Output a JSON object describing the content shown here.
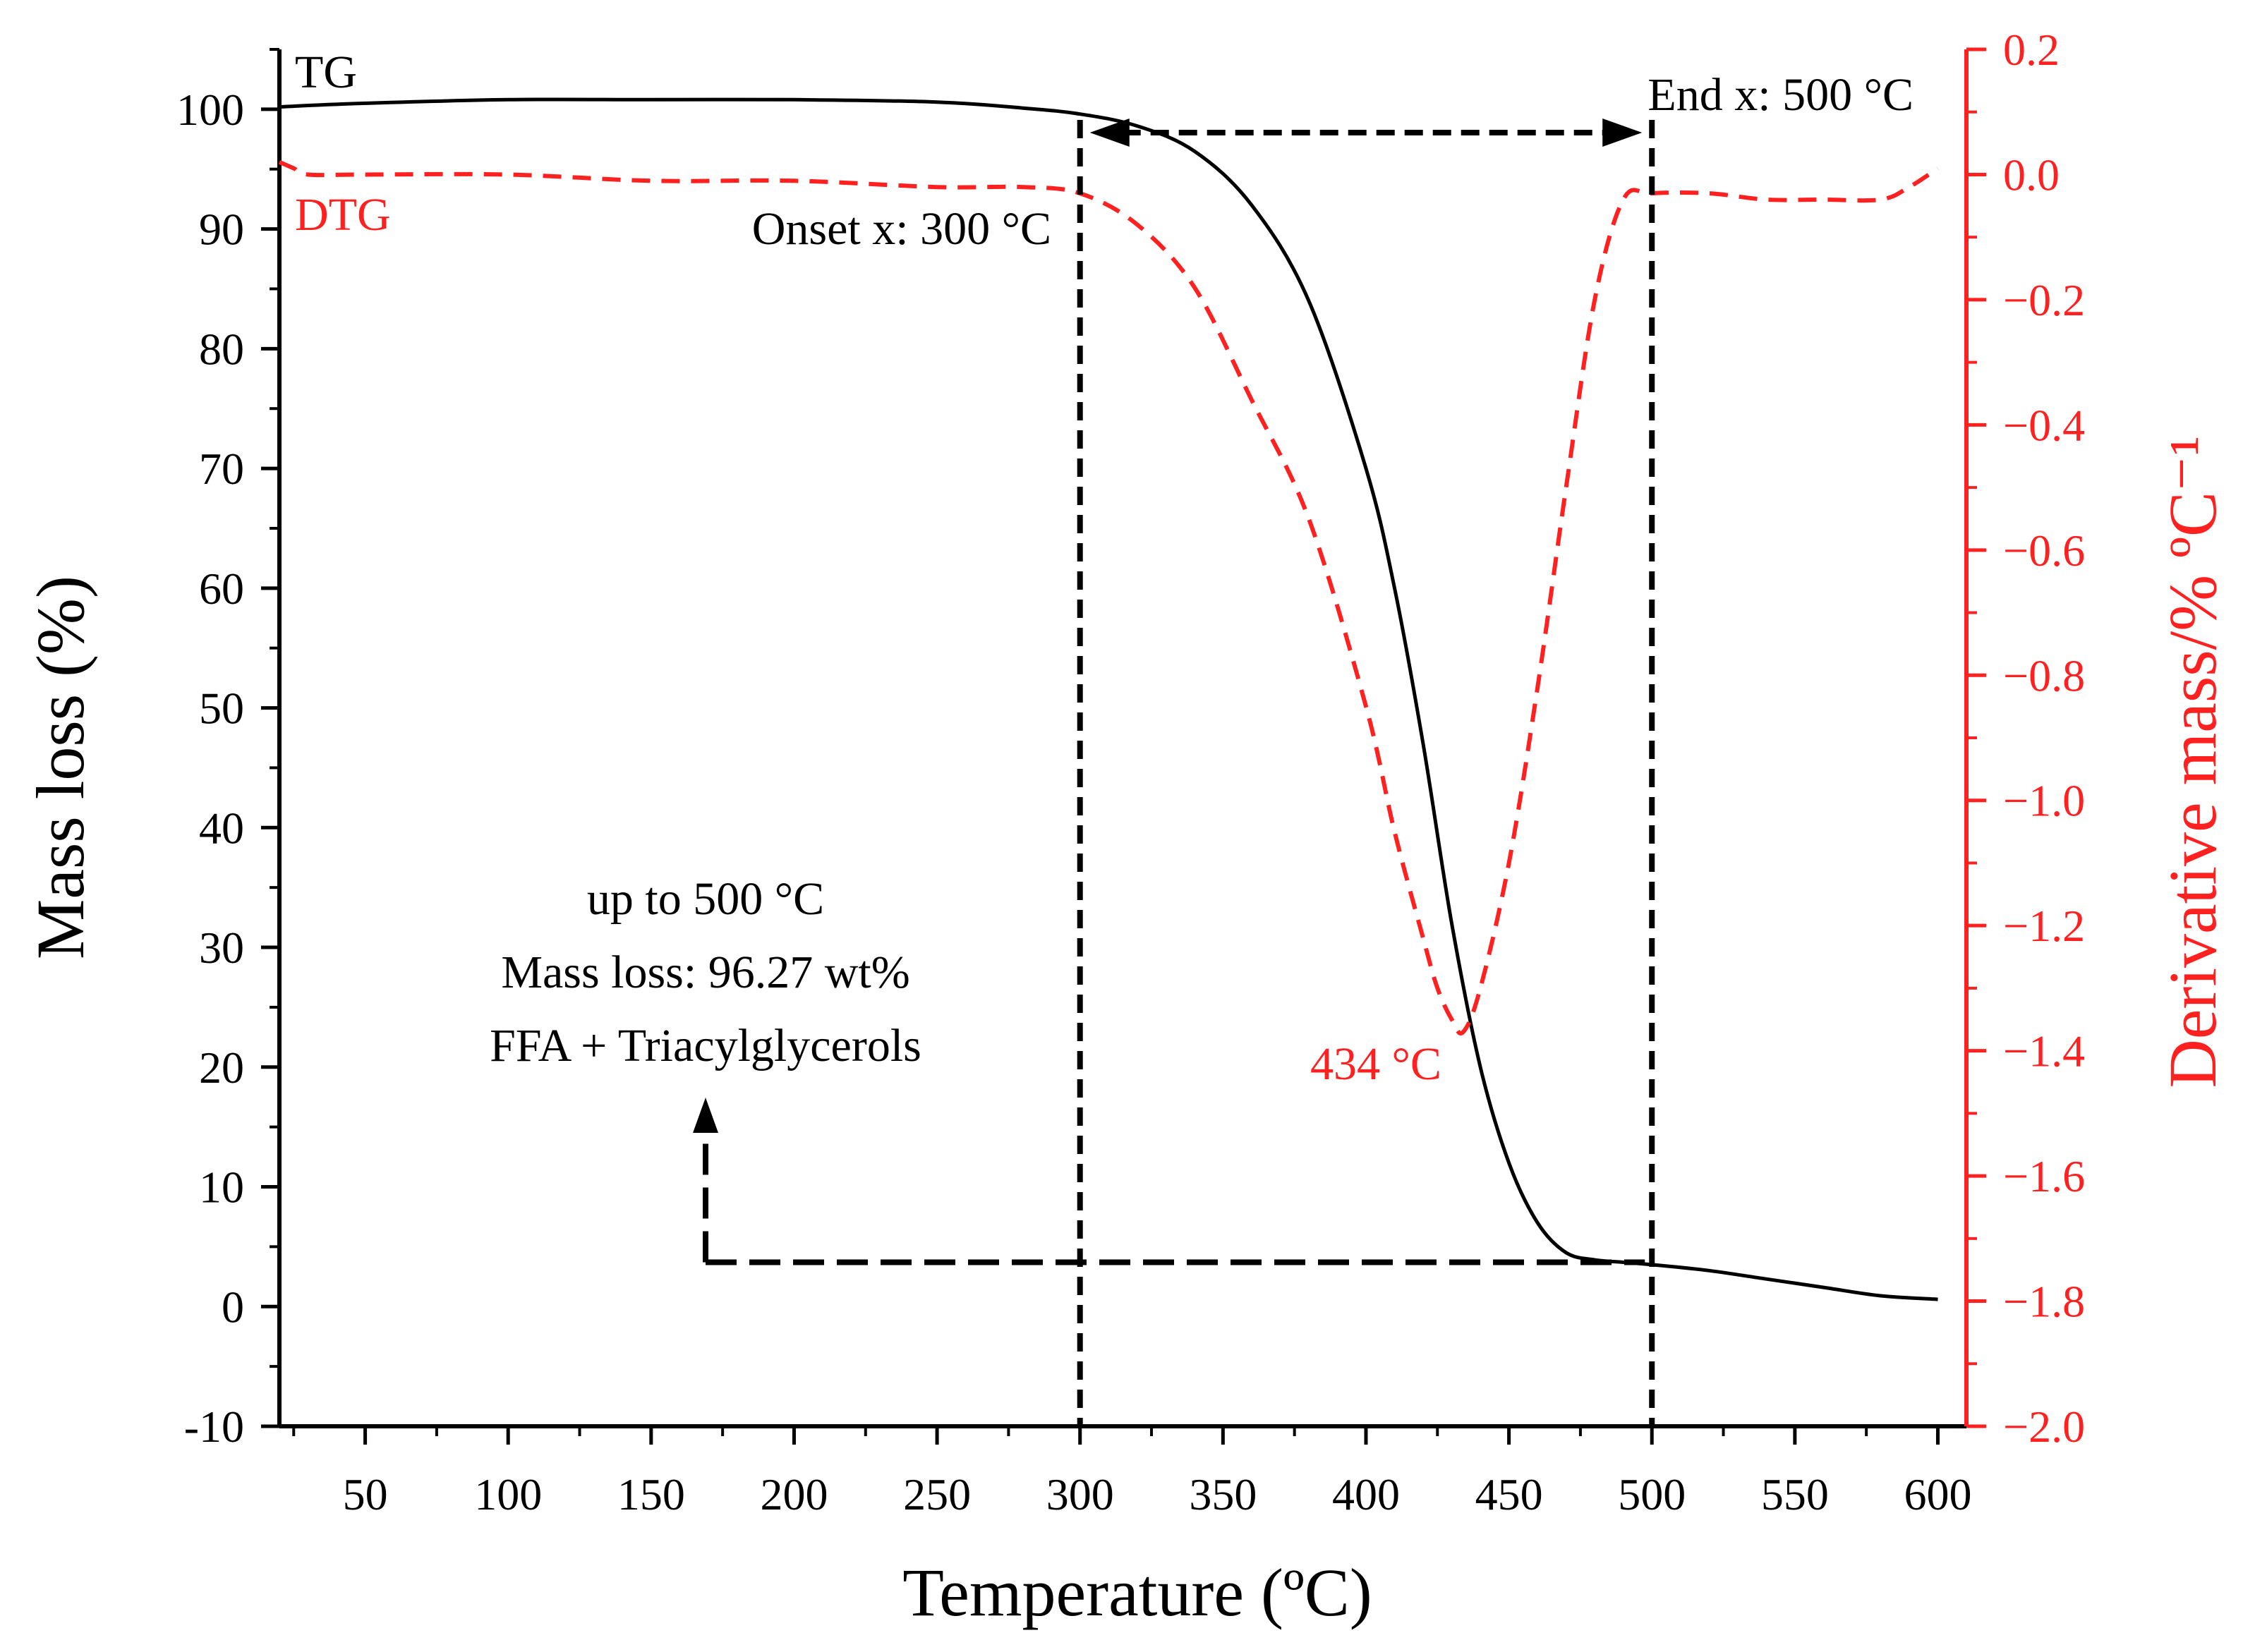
{
  "chart_data": {
    "type": "line",
    "title": "",
    "xlabel": "Temperature (ºC)",
    "ylabel_left": "Mass loss (%)",
    "ylabel_right": "Derivative mass/% ºC⁻¹",
    "xlim": [
      20,
      610
    ],
    "ylim_left": [
      -10,
      105
    ],
    "ylim_right": [
      -2.0,
      0.2
    ],
    "x_ticks": [
      "50",
      "100",
      "150",
      "200",
      "250",
      "300",
      "350",
      "400",
      "450",
      "500",
      "550",
      "600"
    ],
    "y_left_ticks": [
      "-10",
      "0",
      "10",
      "20",
      "30",
      "40",
      "50",
      "60",
      "70",
      "80",
      "90",
      "100"
    ],
    "y_right_ticks": [
      "−2.0",
      "−1.8",
      "−1.6",
      "−1.4",
      "−1.2",
      "−1.0",
      "−0.8",
      "−0.6",
      "−0.4",
      "−0.2",
      "0.0",
      "0.2"
    ],
    "series": [
      {
        "name": "TG",
        "axis": "left",
        "color": "#000000",
        "x": [
          20,
          50,
          100,
          150,
          200,
          250,
          280,
          300,
          320,
          340,
          360,
          380,
          400,
          410,
          420,
          430,
          440,
          450,
          460,
          470,
          480,
          490,
          500,
          520,
          540,
          560,
          580,
          600
        ],
        "y": [
          100.2,
          100.5,
          100.8,
          100.8,
          100.8,
          100.6,
          100.1,
          99.6,
          98.6,
          96.5,
          92.0,
          84.0,
          70.0,
          60.0,
          47.0,
          32.0,
          20.0,
          12.0,
          7.0,
          4.5,
          3.9,
          3.7,
          3.5,
          3.0,
          2.3,
          1.6,
          0.9,
          0.6
        ]
      },
      {
        "name": "DTG",
        "axis": "right",
        "color": "#ff2020",
        "dashed": true,
        "x": [
          20,
          25,
          30,
          50,
          100,
          150,
          200,
          250,
          280,
          300,
          320,
          340,
          360,
          380,
          400,
          410,
          420,
          425,
          430,
          434,
          440,
          450,
          460,
          470,
          480,
          490,
          500,
          520,
          540,
          560,
          580,
          590,
          600
        ],
        "y": [
          0.02,
          0.01,
          0.0,
          0.0,
          0.0,
          -0.01,
          -0.01,
          -0.02,
          -0.02,
          -0.03,
          -0.08,
          -0.18,
          -0.36,
          -0.55,
          -0.85,
          -1.05,
          -1.22,
          -1.3,
          -1.35,
          -1.37,
          -1.3,
          -1.1,
          -0.82,
          -0.5,
          -0.2,
          -0.04,
          -0.03,
          -0.03,
          -0.04,
          -0.04,
          -0.04,
          -0.02,
          0.01
        ]
      }
    ],
    "series_labels": {
      "tg": "TG",
      "dtg": "DTG"
    },
    "annotations": {
      "onset": "Onset x: 300 °C",
      "onset_x": 300,
      "end": "End x: 500 °C",
      "end_x": 500,
      "peak": "434 °C",
      "peak_x": 434,
      "mass_loss_level": 3.7,
      "note_line1": "up to 500 °C",
      "note_line2": "Mass loss: 96.27 wt%",
      "note_line3": "FFA + Triacylglycerols"
    }
  },
  "colors": {
    "tg": "#000000",
    "dtg": "#ff2020",
    "right_axis": "#ff2020"
  }
}
